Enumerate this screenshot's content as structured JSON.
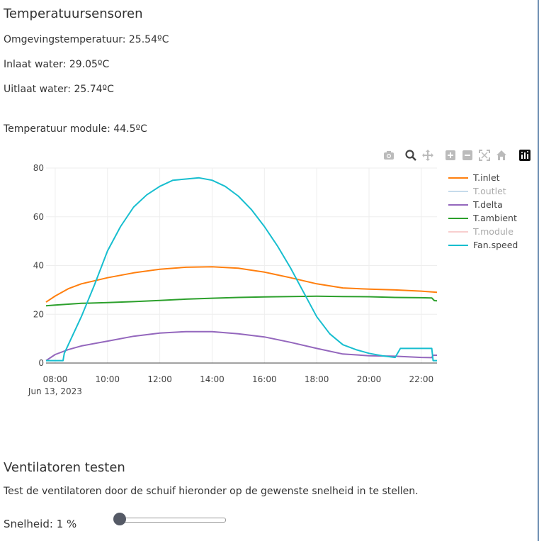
{
  "temps": {
    "title": "Temperatuursensoren",
    "ambient_label": "Omgevingstemperatuur:",
    "ambient_value": "25.54ºC",
    "inlet_label": "Inlaat water:",
    "inlet_value": "29.05ºC",
    "outlet_label": "Uitlaat water:",
    "outlet_value": "25.74ºC",
    "module_label": "Temperatuur module:",
    "module_value": "44.5ºC"
  },
  "modebar": {
    "icons": [
      "camera-icon",
      "zoom-icon",
      "pan-icon",
      "zoom-in-icon",
      "zoom-out-icon",
      "autoscale-icon",
      "home-icon",
      "plotly-logo-icon"
    ]
  },
  "chart_data": {
    "type": "line",
    "x_unit": "hour",
    "xlim": [
      7.65,
      22.6
    ],
    "ylim": [
      0,
      80
    ],
    "yticks": [
      0,
      20,
      40,
      60,
      80
    ],
    "xticks": [
      {
        "hour": 8,
        "label": "08:00"
      },
      {
        "hour": 10,
        "label": "10:00"
      },
      {
        "hour": 12,
        "label": "12:00"
      },
      {
        "hour": 14,
        "label": "14:00"
      },
      {
        "hour": 16,
        "label": "16:00"
      },
      {
        "hour": 18,
        "label": "18:00"
      },
      {
        "hour": 20,
        "label": "20:00"
      },
      {
        "hour": 22,
        "label": "22:00"
      }
    ],
    "date_label": "Jun 13, 2023",
    "grid": true,
    "legend_position": "top-right",
    "series": [
      {
        "name": "T.inlet",
        "color": "#ff7f0e",
        "visible": true,
        "x": [
          7.65,
          8.0,
          8.5,
          9.0,
          10.0,
          11.0,
          12.0,
          13.0,
          14.0,
          15.0,
          16.0,
          17.0,
          18.0,
          19.0,
          20.0,
          21.0,
          22.0,
          22.6
        ],
        "y": [
          25,
          27.5,
          30.5,
          32.5,
          35,
          37,
          38.5,
          39.3,
          39.5,
          38.9,
          37.3,
          35,
          32.5,
          30.8,
          30.3,
          30.0,
          29.5,
          29
        ]
      },
      {
        "name": "T.outlet",
        "color": "#8fb8d8",
        "visible": false,
        "x": [],
        "y": []
      },
      {
        "name": "T.delta",
        "color": "#9467bd",
        "visible": true,
        "x": [
          7.65,
          8.0,
          8.5,
          9.0,
          10.0,
          11.0,
          12.0,
          13.0,
          14.0,
          15.0,
          16.0,
          17.0,
          18.0,
          19.0,
          20.0,
          21.0,
          22.0,
          22.4,
          22.45,
          22.6
        ],
        "y": [
          1,
          3.5,
          5.5,
          7,
          9,
          11,
          12.3,
          12.9,
          12.9,
          12.0,
          10.7,
          8.5,
          6.0,
          3.7,
          3.0,
          2.8,
          2.3,
          2.2,
          3.2,
          3.2
        ]
      },
      {
        "name": "T.ambient",
        "color": "#2ca02c",
        "visible": true,
        "x": [
          7.65,
          8.0,
          9.0,
          10.0,
          11.0,
          12.0,
          13.0,
          14.0,
          15.0,
          16.0,
          17.0,
          18.0,
          19.0,
          20.0,
          21.0,
          22.0,
          22.4,
          22.5,
          22.6
        ],
        "y": [
          23.5,
          23.8,
          24.5,
          24.8,
          25.2,
          25.7,
          26.2,
          26.6,
          26.9,
          27.1,
          27.3,
          27.4,
          27.3,
          27.2,
          26.9,
          26.8,
          26.7,
          25.6,
          25.5
        ]
      },
      {
        "name": "T.module",
        "color": "#f2a0a0",
        "visible": false,
        "x": [],
        "y": []
      },
      {
        "name": "Fan.speed",
        "color": "#17becf",
        "visible": true,
        "x": [
          7.65,
          8.3,
          8.35,
          9.0,
          9.5,
          10.0,
          10.5,
          11.0,
          11.5,
          12.0,
          12.5,
          13.0,
          13.5,
          14.0,
          14.5,
          15.0,
          15.5,
          16.0,
          16.5,
          17.0,
          17.5,
          18.0,
          18.5,
          19.0,
          19.5,
          20.0,
          20.5,
          21.0,
          21.2,
          22.0,
          22.4,
          22.45,
          22.6
        ],
        "y": [
          1,
          1,
          4,
          19,
          32,
          46,
          56,
          64,
          69,
          72.5,
          75,
          75.5,
          76,
          75,
          72.5,
          68.5,
          63,
          56,
          48,
          39,
          29,
          19,
          12,
          7.5,
          5.5,
          4,
          3,
          2.3,
          6,
          6,
          6,
          1,
          1
        ]
      }
    ]
  },
  "fan_test": {
    "title": "Ventilatoren testen",
    "description": "Test de ventilatoren door de schuif hieronder op de gewenste snelheid in te stellen.",
    "speed_label": "Snelheid:",
    "speed_value": "1 %",
    "slider_fraction": 0.01
  }
}
